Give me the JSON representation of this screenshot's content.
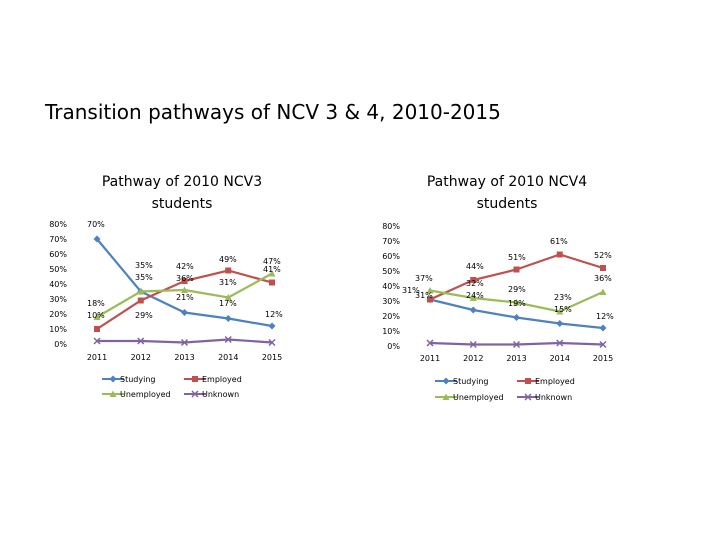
{
  "page": {
    "title": "Transition pathways of NCV 3 & 4, 2010-2015"
  },
  "chart_data": [
    {
      "type": "line",
      "title_lines": [
        "Pathway of 2010 NCV3",
        "students"
      ],
      "categories": [
        "2011",
        "2012",
        "2013",
        "2014",
        "2015"
      ],
      "ylim": [
        0,
        80
      ],
      "yticks": [
        "0%",
        "10%",
        "20%",
        "30%",
        "40%",
        "50%",
        "60%",
        "70%",
        "80%"
      ],
      "series": [
        {
          "name": "Studying",
          "color": "#4F81BD",
          "marker": "diamond",
          "values": [
            70,
            35,
            21,
            17,
            12
          ]
        },
        {
          "name": "Employed",
          "color": "#C0504D",
          "marker": "square",
          "values": [
            10,
            29,
            42,
            49,
            41
          ]
        },
        {
          "name": "Unemployed",
          "color": "#9BBB59",
          "marker": "triangle",
          "values": [
            18,
            35,
            36,
            31,
            47
          ]
        },
        {
          "name": "Unknown",
          "color": "#8064A2",
          "marker": "x",
          "values": [
            2,
            2,
            1,
            3,
            1
          ]
        }
      ],
      "data_labels": [
        "70%",
        "18%",
        "10%",
        "35%",
        "35%",
        "29%",
        "42%",
        "36%",
        "21%",
        "49%",
        "31%",
        "17%",
        "47%",
        "41%",
        "12%"
      ]
    },
    {
      "type": "line",
      "title_lines": [
        "Pathway of 2010 NCV4",
        "students"
      ],
      "categories": [
        "2011",
        "2012",
        "2013",
        "2014",
        "2015"
      ],
      "ylim": [
        0,
        80
      ],
      "yticks": [
        "0%",
        "10%",
        "20%",
        "30%",
        "40%",
        "50%",
        "60%",
        "70%",
        "80%"
      ],
      "series": [
        {
          "name": "Studying",
          "color": "#4F81BD",
          "marker": "diamond",
          "values": [
            31,
            24,
            19,
            15,
            12
          ]
        },
        {
          "name": "Employed",
          "color": "#C0504D",
          "marker": "square",
          "values": [
            31,
            44,
            51,
            61,
            52
          ]
        },
        {
          "name": "Unemployed",
          "color": "#9BBB59",
          "marker": "triangle",
          "values": [
            37,
            32,
            29,
            23,
            36
          ]
        },
        {
          "name": "Unknown",
          "color": "#8064A2",
          "marker": "x",
          "values": [
            2,
            1,
            1,
            2,
            1
          ]
        }
      ],
      "data_labels": [
        "37%",
        "31%",
        "31%",
        "44%",
        "32%",
        "24%",
        "51%",
        "29%",
        "19%",
        "61%",
        "23%",
        "15%",
        "52%",
        "36%",
        "12%"
      ]
    }
  ]
}
